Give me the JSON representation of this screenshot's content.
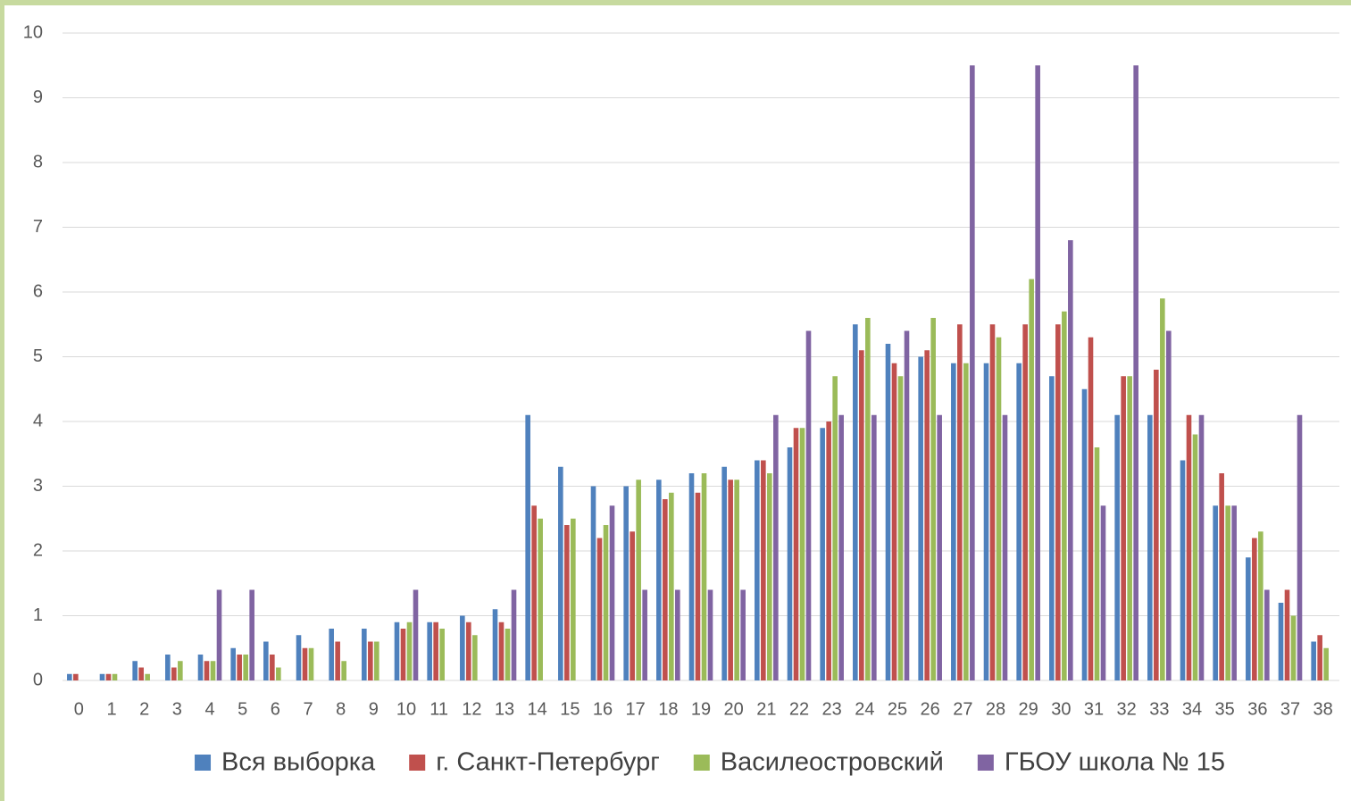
{
  "chart_data": {
    "type": "bar",
    "categories": [
      "0",
      "1",
      "2",
      "3",
      "4",
      "5",
      "6",
      "7",
      "8",
      "9",
      "10",
      "11",
      "12",
      "13",
      "14",
      "15",
      "16",
      "17",
      "18",
      "19",
      "20",
      "21",
      "22",
      "23",
      "24",
      "25",
      "26",
      "27",
      "28",
      "29",
      "30",
      "31",
      "32",
      "33",
      "34",
      "35",
      "36",
      "37",
      "38"
    ],
    "series": [
      {
        "name": "Вся выборка",
        "color": "#4f81bd",
        "values": [
          0.1,
          0.1,
          0.3,
          0.4,
          0.4,
          0.5,
          0.6,
          0.7,
          0.8,
          0.8,
          0.9,
          0.9,
          1.0,
          1.1,
          4.1,
          3.3,
          3.0,
          3.0,
          3.1,
          3.2,
          3.3,
          3.4,
          3.6,
          3.9,
          5.5,
          5.2,
          5.0,
          4.9,
          4.9,
          4.9,
          4.7,
          4.5,
          4.1,
          4.1,
          3.4,
          2.7,
          1.9,
          1.2,
          0.6
        ]
      },
      {
        "name": "г. Санкт-Петербург",
        "color": "#c0504d",
        "values": [
          0.1,
          0.1,
          0.2,
          0.2,
          0.3,
          0.4,
          0.4,
          0.5,
          0.6,
          0.6,
          0.8,
          0.9,
          0.9,
          0.9,
          2.7,
          2.4,
          2.2,
          2.3,
          2.8,
          2.9,
          3.1,
          3.4,
          3.9,
          4.0,
          5.1,
          4.9,
          5.1,
          5.5,
          5.5,
          5.5,
          5.5,
          5.3,
          4.7,
          4.8,
          4.1,
          3.2,
          2.2,
          1.4,
          0.7
        ]
      },
      {
        "name": "Василеостровский",
        "color": "#9bbb59",
        "values": [
          0,
          0.1,
          0.1,
          0.3,
          0.3,
          0.4,
          0.2,
          0.5,
          0.3,
          0.6,
          0.9,
          0.8,
          0.7,
          0.8,
          2.5,
          2.5,
          2.4,
          3.1,
          2.9,
          3.2,
          3.1,
          3.2,
          3.9,
          4.7,
          5.6,
          4.7,
          5.6,
          4.9,
          5.3,
          6.2,
          5.7,
          3.6,
          4.7,
          5.9,
          3.8,
          2.7,
          2.3,
          1.0,
          0.5
        ]
      },
      {
        "name": "ГБОУ  школа № 15",
        "color": "#8064a2",
        "values": [
          0,
          0,
          0,
          0,
          1.4,
          1.4,
          0,
          0,
          0,
          0,
          1.4,
          0,
          0,
          1.4,
          0,
          0,
          2.7,
          1.4,
          1.4,
          1.4,
          1.4,
          4.1,
          5.4,
          4.1,
          4.1,
          5.4,
          4.1,
          9.5,
          4.1,
          9.5,
          6.8,
          2.7,
          9.5,
          5.4,
          4.1,
          2.7,
          1.4,
          4.1,
          0
        ]
      }
    ],
    "ylim": [
      0,
      10
    ],
    "yticks": [
      0,
      1,
      2,
      3,
      4,
      5,
      6,
      7,
      8,
      9,
      10
    ],
    "grid": true,
    "legend": "bottom"
  }
}
